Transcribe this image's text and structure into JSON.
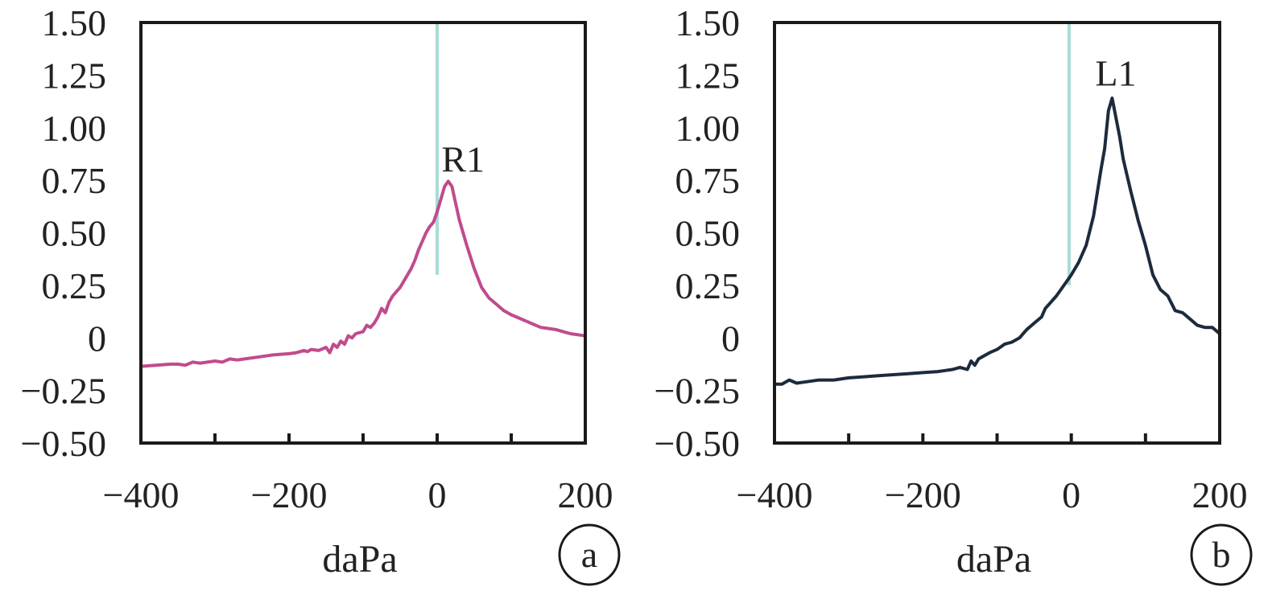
{
  "chart_data": [
    {
      "type": "line",
      "panel": "a",
      "xlabel": "daPa",
      "ylabel": "",
      "xlim": [
        -400,
        200
      ],
      "ylim": [
        -0.5,
        1.5
      ],
      "x_ticks": [
        -400,
        -300,
        -200,
        -100,
        0,
        100,
        200
      ],
      "x_tick_labels": [
        "−400",
        "",
        "−200",
        "",
        "0",
        "",
        "200"
      ],
      "y_ticks": [
        -0.5,
        -0.25,
        0,
        0.25,
        0.5,
        0.75,
        1.0,
        1.25,
        1.5
      ],
      "y_tick_labels": [
        "−0.50",
        "−0.25",
        "0",
        "0.25",
        "0.50",
        "0.75",
        "1.00",
        "1.25",
        "1.50"
      ],
      "vertical_marker": {
        "x": 0,
        "y_range": [
          0.3,
          1.5
        ],
        "color": "#a8dcd6"
      },
      "annotation": {
        "text": "R1",
        "x": 35,
        "y": 0.79
      },
      "series": [
        {
          "color": "#c04b8c",
          "x": [
            -400,
            -380,
            -360,
            -350,
            -340,
            -330,
            -320,
            -300,
            -290,
            -280,
            -270,
            -260,
            -240,
            -220,
            -200,
            -190,
            -180,
            -175,
            -170,
            -160,
            -150,
            -145,
            -140,
            -135,
            -130,
            -125,
            -120,
            -115,
            -110,
            -100,
            -95,
            -90,
            -85,
            -80,
            -75,
            -70,
            -65,
            -60,
            -55,
            -50,
            -45,
            -40,
            -35,
            -30,
            -25,
            -20,
            -15,
            -10,
            -5,
            0,
            5,
            10,
            15,
            20,
            25,
            30,
            40,
            50,
            60,
            70,
            80,
            90,
            100,
            110,
            120,
            130,
            140,
            150,
            160,
            170,
            180,
            190,
            200
          ],
          "y": [
            -0.135,
            -0.13,
            -0.125,
            -0.125,
            -0.13,
            -0.115,
            -0.12,
            -0.11,
            -0.115,
            -0.1,
            -0.105,
            -0.1,
            -0.09,
            -0.08,
            -0.075,
            -0.07,
            -0.06,
            -0.065,
            -0.055,
            -0.06,
            -0.045,
            -0.07,
            -0.03,
            -0.045,
            -0.015,
            -0.03,
            0.01,
            0.0,
            0.02,
            0.03,
            0.06,
            0.05,
            0.07,
            0.1,
            0.14,
            0.12,
            0.17,
            0.2,
            0.22,
            0.24,
            0.27,
            0.3,
            0.33,
            0.37,
            0.42,
            0.46,
            0.5,
            0.53,
            0.55,
            0.6,
            0.66,
            0.72,
            0.745,
            0.72,
            0.64,
            0.56,
            0.44,
            0.33,
            0.24,
            0.19,
            0.16,
            0.13,
            0.11,
            0.095,
            0.08,
            0.065,
            0.05,
            0.045,
            0.04,
            0.03,
            0.02,
            0.015,
            0.01
          ]
        }
      ]
    },
    {
      "type": "line",
      "panel": "b",
      "xlabel": "daPa",
      "ylabel": "",
      "xlim": [
        -400,
        200
      ],
      "ylim": [
        -0.5,
        1.5
      ],
      "x_ticks": [
        -400,
        -300,
        -200,
        -100,
        0,
        100,
        200
      ],
      "x_tick_labels": [
        "−400",
        "",
        "−200",
        "",
        "0",
        "",
        "200"
      ],
      "y_ticks": [
        -0.5,
        -0.25,
        0,
        0.25,
        0.5,
        0.75,
        1.0,
        1.25,
        1.5
      ],
      "y_tick_labels": [
        "−0.50",
        "−0.25",
        "0",
        "0.25",
        "0.50",
        "0.75",
        "1.00",
        "1.25",
        "1.50"
      ],
      "vertical_marker": {
        "x": -3,
        "y_range": [
          0.25,
          1.5
        ],
        "color": "#a8dcd6"
      },
      "annotation": {
        "text": "L1",
        "x": 60,
        "y": 1.2
      },
      "series": [
        {
          "color": "#1c2b3c",
          "x": [
            -400,
            -390,
            -380,
            -370,
            -360,
            -340,
            -320,
            -300,
            -280,
            -260,
            -240,
            -220,
            -200,
            -180,
            -170,
            -160,
            -150,
            -140,
            -135,
            -130,
            -125,
            -120,
            -110,
            -100,
            -90,
            -80,
            -70,
            -60,
            -50,
            -40,
            -35,
            -30,
            -20,
            -10,
            0,
            10,
            20,
            30,
            40,
            45,
            50,
            55,
            60,
            65,
            70,
            80,
            90,
            100,
            110,
            120,
            130,
            140,
            150,
            160,
            170,
            180,
            190,
            200
          ],
          "y": [
            -0.22,
            -0.22,
            -0.2,
            -0.215,
            -0.21,
            -0.2,
            -0.2,
            -0.19,
            -0.185,
            -0.18,
            -0.175,
            -0.17,
            -0.165,
            -0.16,
            -0.155,
            -0.15,
            -0.14,
            -0.15,
            -0.11,
            -0.13,
            -0.1,
            -0.09,
            -0.07,
            -0.055,
            -0.03,
            -0.02,
            0.0,
            0.04,
            0.07,
            0.1,
            0.14,
            0.16,
            0.2,
            0.25,
            0.3,
            0.36,
            0.44,
            0.58,
            0.8,
            0.9,
            1.08,
            1.14,
            1.05,
            0.96,
            0.85,
            0.7,
            0.56,
            0.44,
            0.3,
            0.23,
            0.2,
            0.13,
            0.12,
            0.09,
            0.06,
            0.05,
            0.05,
            0.02
          ]
        }
      ]
    }
  ]
}
